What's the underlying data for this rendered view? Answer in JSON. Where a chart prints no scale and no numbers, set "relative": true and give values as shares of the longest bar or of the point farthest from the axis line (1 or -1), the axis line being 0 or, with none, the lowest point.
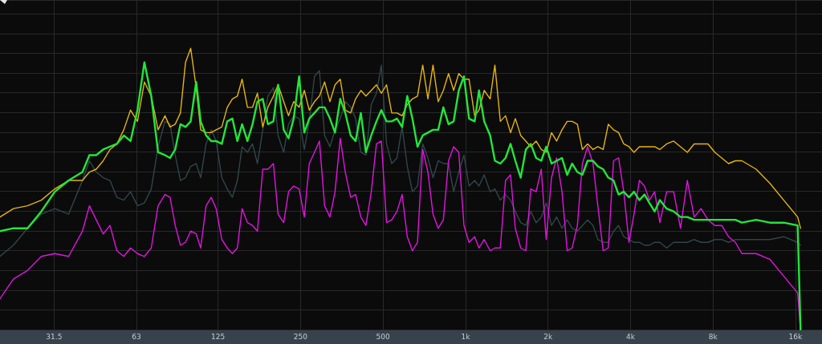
{
  "chart_data": {
    "type": "line",
    "relative": true,
    "log": "x",
    "grid": true,
    "marker": "none",
    "line_style": "solid",
    "xlim": [
      20,
      20000
    ],
    "xticks": [
      31.5,
      63,
      125,
      250,
      500,
      {
        "value": 1000,
        "label": "1k"
      },
      {
        "value": 2000,
        "label": "2k"
      },
      {
        "value": 4000,
        "label": "4k"
      },
      {
        "value": 8000,
        "label": "8k"
      },
      {
        "value": 16000,
        "label": "16k"
      }
    ],
    "x": [
      20,
      22.4,
      25.2,
      28.3,
      31.7,
      35.6,
      40,
      42.4,
      44.9,
      47.6,
      50.4,
      53.4,
      56.6,
      59.9,
      63.5,
      67.3,
      71.3,
      75.5,
      80,
      83.5,
      87.2,
      91.1,
      95.1,
      99.3,
      104,
      108,
      113,
      118,
      123,
      129,
      135,
      141,
      147,
      153,
      160,
      167,
      174,
      182,
      190,
      199,
      207,
      217,
      226,
      236,
      247,
      258,
      269,
      281,
      293,
      306,
      320,
      334,
      349,
      364,
      381,
      397,
      415,
      433,
      453,
      473,
      493,
      515,
      538,
      562,
      587,
      613,
      640,
      668,
      698,
      729,
      761,
      795,
      830,
      867,
      905,
      945,
      987,
      1030,
      1080,
      1120,
      1170,
      1230,
      1280,
      1340,
      1400,
      1460,
      1520,
      1590,
      1660,
      1730,
      1810,
      1890,
      1970,
      2060,
      2150,
      2250,
      2350,
      2450,
      2560,
      2670,
      2790,
      2920,
      3040,
      3180,
      3320,
      3470,
      3620,
      3780,
      3950,
      4120,
      4310,
      4500,
      4690,
      4900,
      5120,
      5420,
      5750,
      6090,
      6450,
      6830,
      7240,
      7670,
      8130,
      8610,
      9120,
      9660,
      10200,
      11500,
      12900,
      14500,
      16300,
      16700
    ],
    "series": [
      {
        "color": "#30464a",
        "values": [
          0.26,
          0.3,
          0.36,
          0.41,
          0.43,
          0.41,
          0.53,
          0.6,
          0.56,
          0.54,
          0.53,
          0.47,
          0.46,
          0.49,
          0.44,
          0.45,
          0.5,
          0.65,
          0.74,
          0.73,
          0.62,
          0.53,
          0.54,
          0.58,
          0.59,
          0.54,
          0.66,
          0.71,
          0.67,
          0.54,
          0.5,
          0.47,
          0.53,
          0.65,
          0.63,
          0.66,
          0.59,
          0.71,
          0.83,
          0.86,
          0.69,
          0.63,
          0.73,
          0.76,
          0.75,
          0.64,
          0.74,
          0.9,
          0.92,
          0.69,
          0.65,
          0.71,
          0.75,
          0.81,
          0.79,
          0.75,
          0.63,
          0.62,
          0.8,
          0.84,
          0.94,
          0.66,
          0.59,
          0.61,
          0.72,
          0.58,
          0.49,
          0.51,
          0.66,
          0.61,
          0.54,
          0.6,
          0.59,
          0.59,
          0.49,
          0.56,
          0.62,
          0.51,
          0.53,
          0.51,
          0.55,
          0.49,
          0.5,
          0.46,
          0.48,
          0.46,
          0.42,
          0.38,
          0.37,
          0.42,
          0.38,
          0.4,
          0.45,
          0.37,
          0.4,
          0.36,
          0.39,
          0.36,
          0.35,
          0.37,
          0.39,
          0.37,
          0.32,
          0.31,
          0.31,
          0.35,
          0.37,
          0.33,
          0.32,
          0.31,
          0.31,
          0.3,
          0.3,
          0.31,
          0.31,
          0.29,
          0.31,
          0.31,
          0.31,
          0.32,
          0.31,
          0.31,
          0.32,
          0.32,
          0.31,
          0.32,
          0.32,
          0.32,
          0.32,
          0.33,
          0.31,
          0.3
        ]
      },
      {
        "color": "#e214e0",
        "values": [
          0.11,
          0.18,
          0.21,
          0.26,
          0.27,
          0.26,
          0.35,
          0.44,
          0.39,
          0.34,
          0.37,
          0.28,
          0.26,
          0.29,
          0.27,
          0.26,
          0.29,
          0.44,
          0.48,
          0.47,
          0.37,
          0.3,
          0.31,
          0.35,
          0.34,
          0.29,
          0.44,
          0.47,
          0.43,
          0.32,
          0.29,
          0.27,
          0.29,
          0.43,
          0.38,
          0.37,
          0.35,
          0.57,
          0.57,
          0.59,
          0.41,
          0.38,
          0.49,
          0.51,
          0.5,
          0.4,
          0.59,
          0.63,
          0.67,
          0.44,
          0.4,
          0.49,
          0.68,
          0.56,
          0.47,
          0.48,
          0.4,
          0.37,
          0.49,
          0.66,
          0.67,
          0.38,
          0.39,
          0.42,
          0.48,
          0.33,
          0.28,
          0.31,
          0.64,
          0.56,
          0.41,
          0.36,
          0.39,
          0.6,
          0.65,
          0.63,
          0.37,
          0.31,
          0.33,
          0.29,
          0.32,
          0.28,
          0.29,
          0.29,
          0.53,
          0.55,
          0.36,
          0.29,
          0.28,
          0.5,
          0.49,
          0.57,
          0.32,
          0.54,
          0.61,
          0.49,
          0.28,
          0.29,
          0.37,
          0.59,
          0.65,
          0.59,
          0.44,
          0.28,
          0.29,
          0.6,
          0.61,
          0.49,
          0.31,
          0.41,
          0.53,
          0.51,
          0.46,
          0.49,
          0.38,
          0.49,
          0.49,
          0.36,
          0.53,
          0.4,
          0.43,
          0.39,
          0.37,
          0.37,
          0.33,
          0.31,
          0.27,
          0.27,
          0.25,
          0.19,
          0.13,
          0
        ]
      },
      {
        "color": "#e6b412",
        "values": [
          0.4,
          0.43,
          0.44,
          0.46,
          0.5,
          0.53,
          0.53,
          0.56,
          0.57,
          0.6,
          0.64,
          0.66,
          0.71,
          0.78,
          0.74,
          0.88,
          0.83,
          0.71,
          0.76,
          0.72,
          0.73,
          0.77,
          0.95,
          1,
          0.86,
          0.71,
          0.7,
          0.7,
          0.71,
          0.72,
          0.79,
          0.82,
          0.83,
          0.89,
          0.79,
          0.79,
          0.84,
          0.72,
          0.79,
          0.83,
          0.87,
          0.81,
          0.76,
          0.81,
          0.79,
          0.85,
          0.78,
          0.81,
          0.83,
          0.88,
          0.81,
          0.87,
          0.89,
          0.78,
          0.77,
          0.82,
          0.85,
          0.83,
          0.85,
          0.87,
          0.84,
          0.87,
          0.77,
          0.77,
          0.76,
          0.8,
          0.82,
          0.83,
          0.94,
          0.82,
          0.94,
          0.81,
          0.85,
          0.91,
          0.85,
          0.91,
          0.89,
          0.89,
          0.76,
          0.78,
          0.85,
          0.82,
          0.94,
          0.74,
          0.76,
          0.7,
          0.75,
          0.69,
          0.67,
          0.65,
          0.67,
          0.64,
          0.63,
          0.7,
          0.67,
          0.71,
          0.74,
          0.74,
          0.73,
          0.64,
          0.66,
          0.64,
          0.65,
          0.64,
          0.73,
          0.71,
          0.7,
          0.66,
          0.65,
          0.63,
          0.65,
          0.65,
          0.65,
          0.65,
          0.64,
          0.66,
          0.67,
          0.65,
          0.63,
          0.66,
          0.66,
          0.66,
          0.63,
          0.61,
          0.59,
          0.6,
          0.6,
          0.57,
          0.52,
          0.46,
          0.4,
          0.36
        ]
      },
      {
        "color": "#22e63c",
        "values": [
          0.35,
          0.36,
          0.36,
          0.42,
          0.49,
          0.53,
          0.56,
          0.62,
          0.62,
          0.64,
          0.65,
          0.66,
          0.69,
          0.67,
          0.78,
          0.95,
          0.83,
          0.63,
          0.62,
          0.61,
          0.64,
          0.73,
          0.72,
          0.74,
          0.88,
          0.74,
          0.69,
          0.67,
          0.67,
          0.66,
          0.74,
          0.75,
          0.67,
          0.73,
          0.67,
          0.73,
          0.81,
          0.82,
          0.73,
          0.74,
          0.87,
          0.71,
          0.68,
          0.75,
          0.9,
          0.7,
          0.75,
          0.77,
          0.79,
          0.79,
          0.75,
          0.7,
          0.82,
          0.77,
          0.69,
          0.67,
          0.77,
          0.63,
          0.69,
          0.74,
          0.78,
          0.74,
          0.74,
          0.75,
          0.72,
          0.83,
          0.75,
          0.65,
          0.69,
          0.7,
          0.71,
          0.71,
          0.79,
          0.73,
          0.74,
          0.85,
          0.9,
          0.75,
          0.74,
          0.85,
          0.74,
          0.69,
          0.6,
          0.59,
          0.61,
          0.66,
          0.6,
          0.54,
          0.64,
          0.66,
          0.61,
          0.6,
          0.65,
          0.59,
          0.6,
          0.61,
          0.55,
          0.59,
          0.56,
          0.55,
          0.6,
          0.6,
          0.58,
          0.57,
          0.54,
          0.53,
          0.48,
          0.49,
          0.47,
          0.49,
          0.46,
          0.48,
          0.45,
          0.42,
          0.46,
          0.43,
          0.42,
          0.4,
          0.4,
          0.39,
          0.39,
          0.39,
          0.39,
          0.39,
          0.39,
          0.39,
          0.38,
          0.39,
          0.38,
          0.38,
          0.37,
          0
        ]
      }
    ]
  }
}
